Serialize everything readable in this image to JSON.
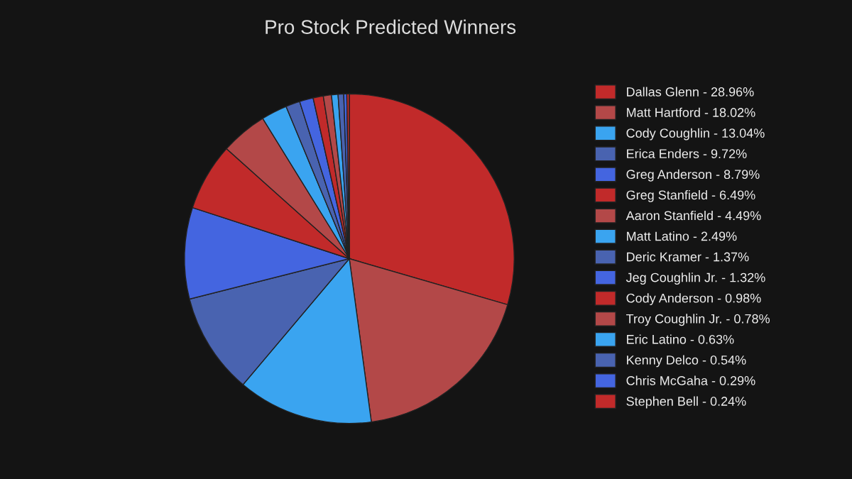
{
  "chart_data": {
    "type": "pie",
    "title": "Pro Stock Predicted Winners",
    "categories": [
      "Dallas Glenn - 28.96%",
      "Matt Hartford - 18.02%",
      "Cody Coughlin - 13.04%",
      "Erica Enders - 9.72%",
      "Greg Anderson - 8.79%",
      "Greg Stanfield - 6.49%",
      "Aaron Stanfield - 4.49%",
      "Matt Latino - 2.49%",
      "Deric Kramer - 1.37%",
      "Jeg Coughlin Jr. - 1.32%",
      "Cody Anderson - 0.98%",
      "Troy Coughlin Jr. - 0.78%",
      "Eric Latino - 0.63%",
      "Kenny Delco - 0.54%",
      "Chris McGaha - 0.29%",
      "Stephen Bell - 0.24%"
    ],
    "values": [
      28.96,
      18.02,
      13.04,
      9.72,
      8.79,
      6.49,
      4.49,
      2.49,
      1.37,
      1.32,
      0.98,
      0.78,
      0.63,
      0.54,
      0.29,
      0.24
    ],
    "colors": [
      "#c12a2a",
      "#b34848",
      "#3aa4f0",
      "#4963b0",
      "#4465e0",
      "#c12a2a",
      "#b34848",
      "#3aa4f0",
      "#4963b0",
      "#4465e0",
      "#c12a2a",
      "#b34848",
      "#3aa4f0",
      "#4963b0",
      "#4465e0",
      "#c12a2a"
    ],
    "legend": "right"
  }
}
